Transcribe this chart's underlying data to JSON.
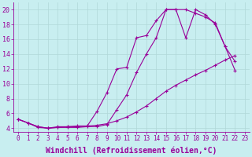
{
  "background_color": "#c8eef0",
  "grid_color": "#b0d8d8",
  "line_color": "#990099",
  "xlabel": "Windchill (Refroidissement éolien,°C)",
  "xlabel_fontsize": 7.0,
  "ylabel_ticks": [
    4,
    6,
    8,
    10,
    12,
    14,
    16,
    18,
    20
  ],
  "xlim": [
    -0.5,
    23.5
  ],
  "ylim": [
    3.5,
    21.0
  ],
  "xtick_fontsize": 5.5,
  "ytick_fontsize": 6.0,
  "curve1_x": [
    0,
    1,
    2,
    3,
    4,
    5,
    6,
    7,
    8,
    9,
    10,
    11,
    12,
    13,
    14,
    15,
    16,
    17,
    18,
    19,
    20,
    21,
    22
  ],
  "curve1_y": [
    5.2,
    4.7,
    4.1,
    4.0,
    4.1,
    4.1,
    4.1,
    4.2,
    4.2,
    4.5,
    6.5,
    8.5,
    11.5,
    14.0,
    16.2,
    20.0,
    20.0,
    20.0,
    19.5,
    19.0,
    18.2,
    15.0,
    13.0
  ],
  "curve2_x": [
    0,
    1,
    2,
    3,
    4,
    5,
    6,
    7,
    8,
    9,
    10,
    11,
    12,
    13,
    14,
    15,
    16,
    17,
    18,
    19,
    20,
    21,
    22
  ],
  "curve2_y": [
    5.2,
    4.7,
    4.2,
    4.0,
    4.1,
    4.2,
    4.2,
    4.3,
    6.3,
    8.8,
    12.0,
    12.2,
    16.2,
    16.5,
    18.5,
    20.0,
    20.0,
    16.2,
    20.0,
    19.3,
    18.0,
    15.0,
    11.8
  ],
  "curve3_x": [
    0,
    1,
    2,
    3,
    4,
    5,
    6,
    7,
    8,
    9,
    10,
    11,
    12,
    13,
    14,
    15,
    16,
    17,
    18,
    19,
    20,
    21,
    22
  ],
  "curve3_y": [
    5.2,
    4.7,
    4.2,
    4.0,
    4.2,
    4.2,
    4.3,
    4.3,
    4.4,
    4.6,
    5.0,
    5.5,
    6.2,
    7.0,
    8.0,
    9.0,
    9.8,
    10.5,
    11.2,
    11.8,
    12.5,
    13.2,
    13.8
  ]
}
